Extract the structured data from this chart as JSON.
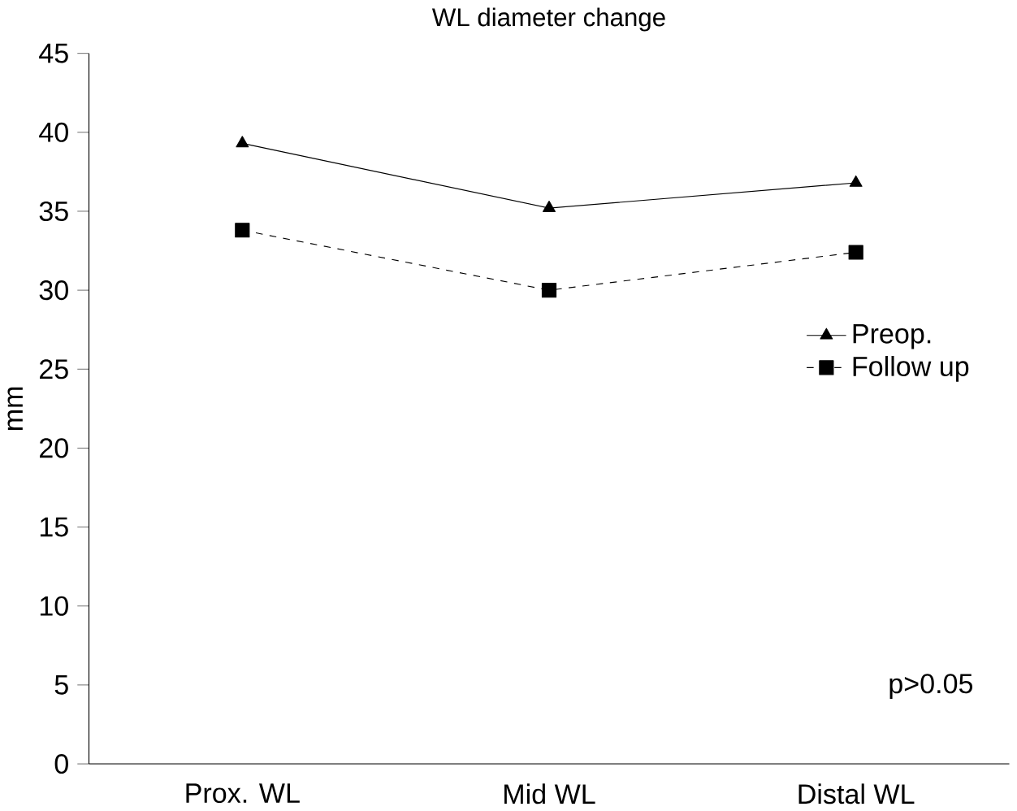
{
  "chart_data": {
    "type": "line",
    "title": "WL diameter change",
    "ylabel": "mm",
    "categories": [
      "Prox. WL",
      "Mid WL",
      "Distal WL"
    ],
    "series": [
      {
        "name": "Preop.",
        "color": "#000000",
        "values": [
          39.3,
          35.2,
          36.8
        ],
        "marker": "triangle",
        "line_style": "solid"
      },
      {
        "name": "Follow up",
        "color": "#000000",
        "values": [
          33.8,
          30,
          32.4
        ],
        "marker": "square",
        "line_style": "dashed"
      }
    ],
    "ylim": [
      0,
      45
    ],
    "yticks": [
      0,
      5,
      10,
      15,
      20,
      25,
      30,
      35,
      40,
      45
    ],
    "grid": false,
    "legend": "right",
    "annotations": [
      {
        "text": "p>0.05"
      }
    ]
  }
}
